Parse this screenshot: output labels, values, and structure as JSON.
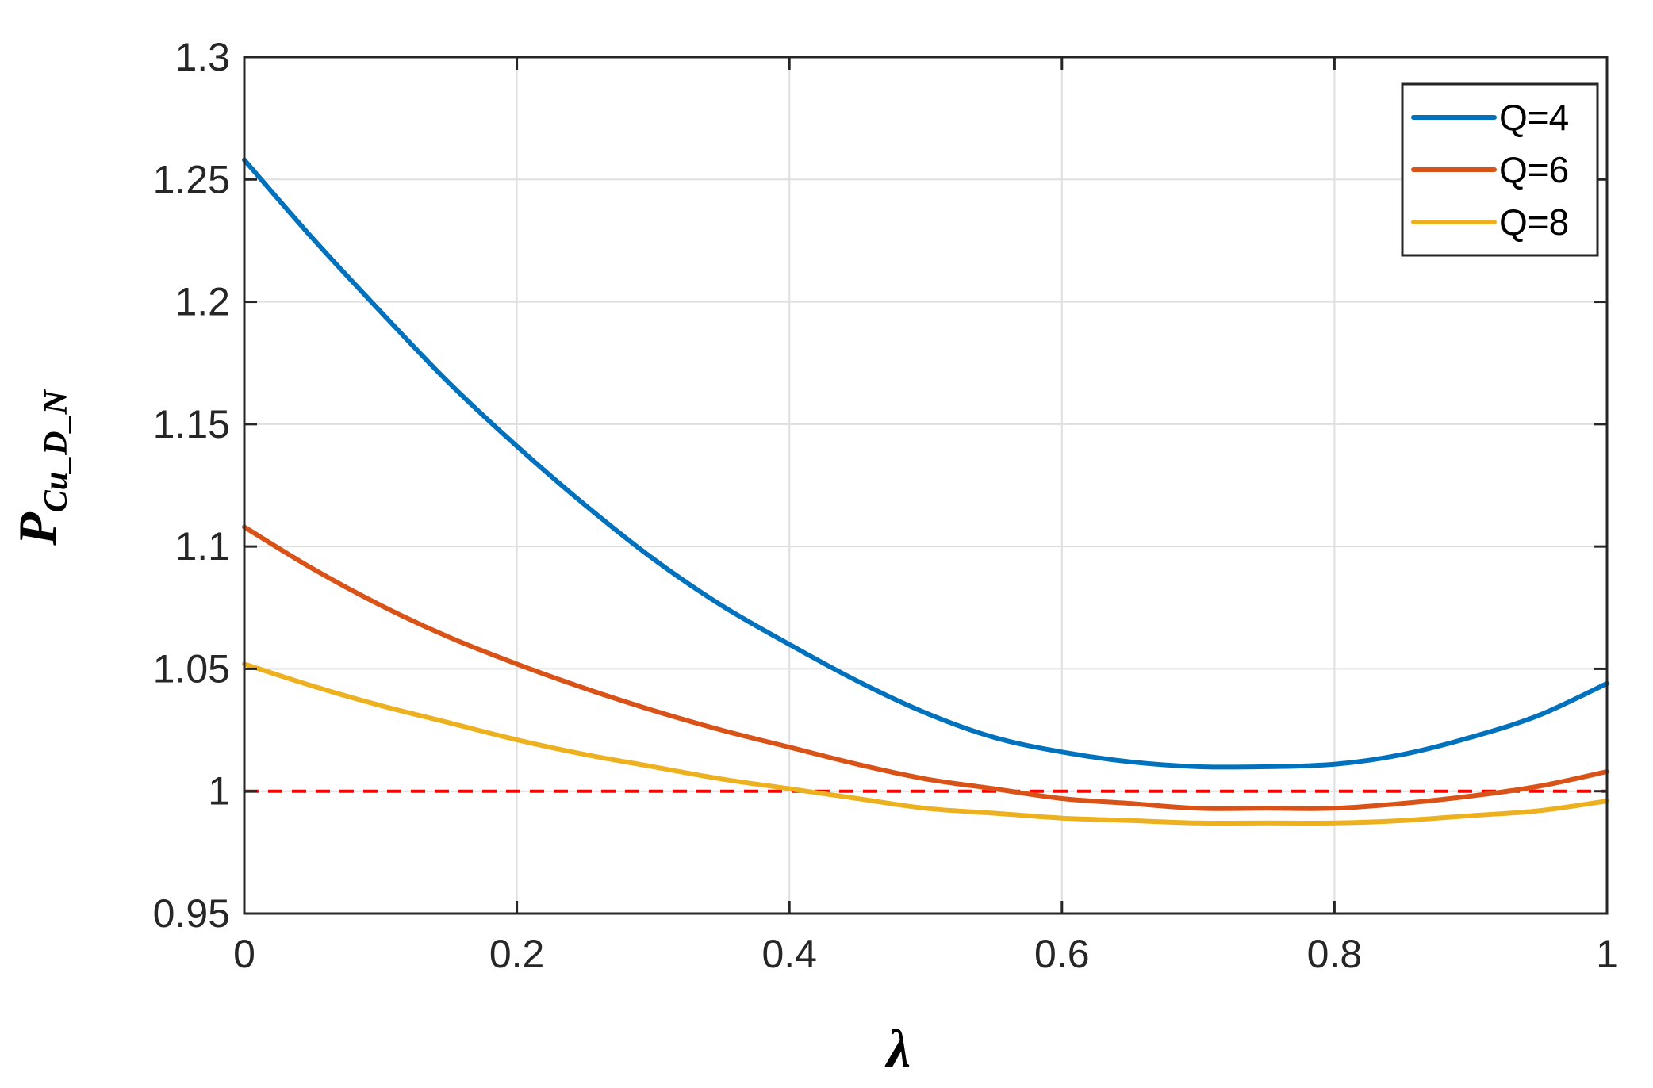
{
  "chart_data": {
    "type": "line",
    "xlabel": "λ",
    "ylabel": {
      "main": "P",
      "subscript": "Cu_D_N"
    },
    "xlim": [
      0,
      1
    ],
    "ylim": [
      0.95,
      1.3
    ],
    "xticks": [
      0,
      0.2,
      0.4,
      0.6,
      0.8,
      1
    ],
    "xtick_labels": [
      "0",
      "0.2",
      "0.4",
      "0.6",
      "0.8",
      "1"
    ],
    "yticks": [
      0.95,
      1,
      1.05,
      1.1,
      1.15,
      1.2,
      1.25,
      1.3
    ],
    "ytick_labels": [
      "0.95",
      "1",
      "1.05",
      "1.1",
      "1.15",
      "1.2",
      "1.25",
      "1.3"
    ],
    "grid": true,
    "legend_position": "top-right",
    "x": [
      0,
      0.05,
      0.1,
      0.15,
      0.2,
      0.25,
      0.3,
      0.35,
      0.4,
      0.45,
      0.5,
      0.55,
      0.6,
      0.65,
      0.7,
      0.75,
      0.8,
      0.85,
      0.9,
      0.95,
      1
    ],
    "series": [
      {
        "name": "Q=4",
        "color": "#0072BD",
        "values": [
          1.258,
          1.226,
          1.196,
          1.167,
          1.141,
          1.117,
          1.095,
          1.076,
          1.06,
          1.045,
          1.032,
          1.022,
          1.016,
          1.012,
          1.01,
          1.01,
          1.011,
          1.015,
          1.022,
          1.031,
          1.044
        ]
      },
      {
        "name": "Q=6",
        "color": "#D95319",
        "values": [
          1.108,
          1.091,
          1.076,
          1.063,
          1.052,
          1.042,
          1.033,
          1.025,
          1.018,
          1.011,
          1.005,
          1.001,
          0.997,
          0.995,
          0.993,
          0.993,
          0.993,
          0.995,
          0.998,
          1.002,
          1.008
        ]
      },
      {
        "name": "Q=8",
        "color": "#EDB120",
        "values": [
          1.052,
          1.043,
          1.035,
          1.028,
          1.021,
          1.015,
          1.01,
          1.005,
          1.001,
          0.997,
          0.993,
          0.991,
          0.989,
          0.988,
          0.987,
          0.987,
          0.987,
          0.988,
          0.99,
          0.992,
          0.996
        ]
      }
    ],
    "reference_line": {
      "y": 1,
      "color": "#FF0000",
      "style": "dashed"
    },
    "colors": {
      "axis": "#262626",
      "grid": "#DFDFDF"
    }
  }
}
